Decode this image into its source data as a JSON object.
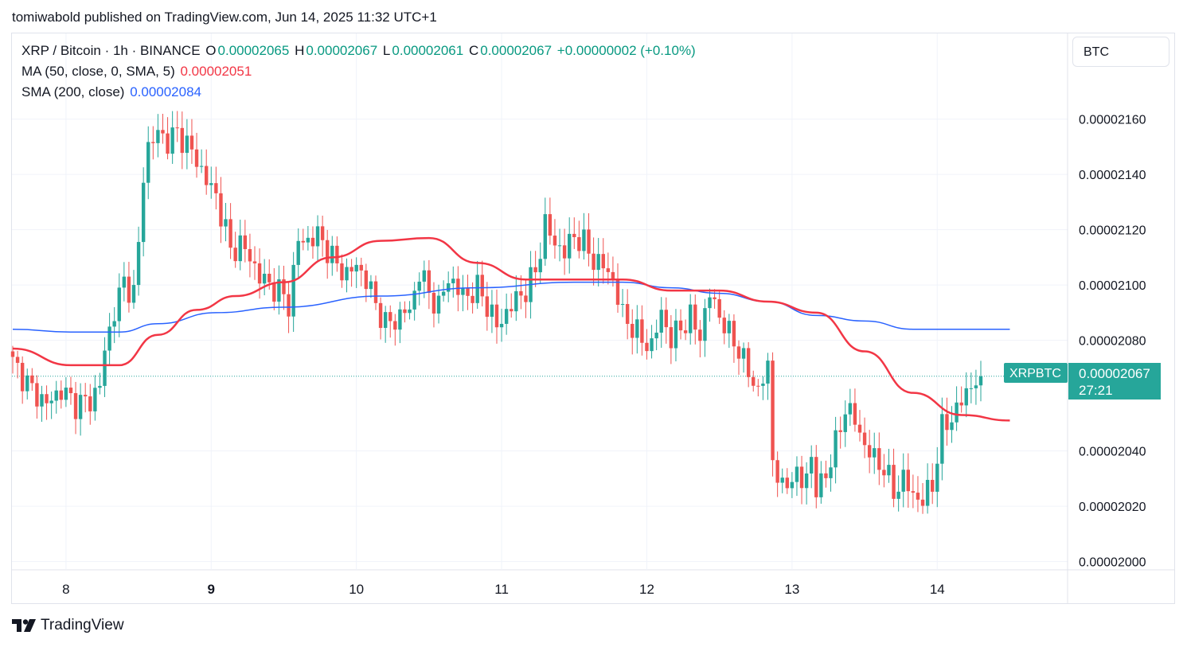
{
  "header": {
    "publisher_line": "tomiwabold published on TradingView.com, Jun 14, 2025 11:32 UTC+1"
  },
  "legend": {
    "symbol": "XRP / Bitcoin · 1h · BINANCE",
    "o_label": "O",
    "o_value": "0.00002065",
    "h_label": "H",
    "h_value": "0.00002067",
    "l_label": "L",
    "l_value": "0.00002061",
    "c_label": "C",
    "c_value": "0.00002067",
    "change": "+0.00000002 (+0.10%)",
    "ma_label": "MA (50, close, 0, SMA, 5)",
    "ma_value": "0.00002051",
    "sma_label": "SMA (200, close)",
    "sma_value": "0.00002084"
  },
  "currency_label": "BTC",
  "price_tag": {
    "symbol": "XRPBTC",
    "value": "0.00002067",
    "countdown": "27:21"
  },
  "brand": {
    "name": "TradingView"
  },
  "colors": {
    "up": "#26a69a",
    "down": "#ef5350",
    "ma50": "#f23645",
    "sma200": "#2962ff",
    "tag": "#26a69a"
  },
  "chart_data": {
    "type": "candlestick",
    "title": "XRP / Bitcoin · 1h · BINANCE",
    "x_ticks": [
      {
        "label": "8",
        "index": 11,
        "bold": false
      },
      {
        "label": "9",
        "index": 41,
        "bold": true
      },
      {
        "label": "10",
        "index": 71,
        "bold": false
      },
      {
        "label": "11",
        "index": 101,
        "bold": false
      },
      {
        "label": "12",
        "index": 131,
        "bold": false
      },
      {
        "label": "13",
        "index": 161,
        "bold": false
      },
      {
        "label": "14",
        "index": 191,
        "bold": false
      }
    ],
    "y_ticks": [
      "0.00002000",
      "0.00002020",
      "0.00002040",
      "0.00002080",
      "0.00002100",
      "0.00002120",
      "0.00002140",
      "0.00002160"
    ],
    "y_tick_values": [
      20.0,
      20.2,
      20.4,
      20.8,
      21.0,
      21.2,
      21.4,
      21.6
    ],
    "y_unit_scale": "×1e-7 BTC",
    "ylim": [
      19.97,
      21.91
    ],
    "last_price": 20.67,
    "anchors": [
      [
        0,
        20.72
      ],
      [
        4,
        20.62
      ],
      [
        7,
        20.57
      ],
      [
        10,
        20.62
      ],
      [
        13,
        20.57
      ],
      [
        16,
        20.58
      ],
      [
        18,
        20.64
      ],
      [
        19,
        20.76
      ],
      [
        21,
        20.91
      ],
      [
        23,
        21.01
      ],
      [
        25,
        20.97
      ],
      [
        26,
        21.14
      ],
      [
        27,
        21.4
      ],
      [
        28,
        21.5
      ],
      [
        30,
        21.55
      ],
      [
        32,
        21.52
      ],
      [
        34,
        21.55
      ],
      [
        36,
        21.51
      ],
      [
        38,
        21.45
      ],
      [
        40,
        21.38
      ],
      [
        42,
        21.32
      ],
      [
        44,
        21.2
      ],
      [
        45,
        21.12
      ],
      [
        47,
        21.15
      ],
      [
        49,
        21.1
      ],
      [
        51,
        21.03
      ],
      [
        53,
        21.0
      ],
      [
        55,
        20.98
      ],
      [
        57,
        20.93
      ],
      [
        59,
        21.16
      ],
      [
        61,
        21.16
      ],
      [
        63,
        21.18
      ],
      [
        65,
        21.13
      ],
      [
        67,
        21.07
      ],
      [
        69,
        21.04
      ],
      [
        71,
        21.07
      ],
      [
        73,
        21.02
      ],
      [
        75,
        20.93
      ],
      [
        77,
        20.86
      ],
      [
        79,
        20.87
      ],
      [
        81,
        20.91
      ],
      [
        82,
        20.9
      ],
      [
        84,
        21.05
      ],
      [
        86,
        20.97
      ],
      [
        88,
        20.92
      ],
      [
        90,
        21.03
      ],
      [
        92,
        20.98
      ],
      [
        94,
        20.96
      ],
      [
        96,
        20.99
      ],
      [
        98,
        20.93
      ],
      [
        100,
        20.85
      ],
      [
        102,
        20.9
      ],
      [
        104,
        20.95
      ],
      [
        106,
        20.98
      ],
      [
        108,
        21.05
      ],
      [
        110,
        21.22
      ],
      [
        112,
        21.15
      ],
      [
        114,
        21.12
      ],
      [
        116,
        21.18
      ],
      [
        118,
        21.15
      ],
      [
        120,
        21.09
      ],
      [
        122,
        21.07
      ],
      [
        124,
        21.02
      ],
      [
        126,
        20.89
      ],
      [
        128,
        20.85
      ],
      [
        130,
        20.8
      ],
      [
        132,
        20.78
      ],
      [
        134,
        20.9
      ],
      [
        136,
        20.8
      ],
      [
        138,
        20.85
      ],
      [
        140,
        20.88
      ],
      [
        142,
        20.82
      ],
      [
        144,
        20.97
      ],
      [
        146,
        20.89
      ],
      [
        148,
        20.82
      ],
      [
        150,
        20.77
      ],
      [
        152,
        20.68
      ],
      [
        154,
        20.62
      ],
      [
        156,
        20.7
      ],
      [
        157,
        20.38
      ],
      [
        159,
        20.25
      ],
      [
        161,
        20.32
      ],
      [
        163,
        20.28
      ],
      [
        165,
        20.37
      ],
      [
        166,
        20.25
      ],
      [
        168,
        20.32
      ],
      [
        170,
        20.42
      ],
      [
        172,
        20.56
      ],
      [
        174,
        20.51
      ],
      [
        176,
        20.42
      ],
      [
        178,
        20.37
      ],
      [
        180,
        20.34
      ],
      [
        182,
        20.25
      ],
      [
        184,
        20.3
      ],
      [
        186,
        20.24
      ],
      [
        188,
        20.22
      ],
      [
        190,
        20.28
      ],
      [
        192,
        20.48
      ],
      [
        194,
        20.52
      ],
      [
        196,
        20.58
      ],
      [
        198,
        20.64
      ],
      [
        200,
        20.67
      ]
    ],
    "ma50": [
      [
        0,
        20.77
      ],
      [
        12,
        20.71
      ],
      [
        22,
        20.71
      ],
      [
        30,
        20.82
      ],
      [
        38,
        20.91
      ],
      [
        46,
        20.96
      ],
      [
        56,
        21.01
      ],
      [
        66,
        21.1
      ],
      [
        76,
        21.16
      ],
      [
        86,
        21.17
      ],
      [
        96,
        21.08
      ],
      [
        106,
        21.02
      ],
      [
        116,
        21.02
      ],
      [
        126,
        21.02
      ],
      [
        136,
        20.98
      ],
      [
        146,
        20.98
      ],
      [
        156,
        20.94
      ],
      [
        166,
        20.9
      ],
      [
        176,
        20.76
      ],
      [
        186,
        20.61
      ],
      [
        196,
        20.53
      ],
      [
        206,
        20.51
      ]
    ],
    "sma200": [
      [
        0,
        20.84
      ],
      [
        12,
        20.83
      ],
      [
        22,
        20.83
      ],
      [
        30,
        20.86
      ],
      [
        42,
        20.9
      ],
      [
        56,
        20.92
      ],
      [
        76,
        20.96
      ],
      [
        96,
        20.99
      ],
      [
        116,
        21.01
      ],
      [
        126,
        21.01
      ],
      [
        136,
        20.99
      ],
      [
        146,
        20.97
      ],
      [
        156,
        20.94
      ],
      [
        166,
        20.89
      ],
      [
        176,
        20.87
      ],
      [
        186,
        20.84
      ],
      [
        196,
        20.84
      ],
      [
        206,
        20.84
      ]
    ],
    "series": [
      {
        "name": "MA (50, close, 0, SMA, 5)",
        "color": "#f23645"
      },
      {
        "name": "SMA (200, close)",
        "color": "#2962ff"
      }
    ],
    "grid": true,
    "legend_position": "top-left"
  }
}
